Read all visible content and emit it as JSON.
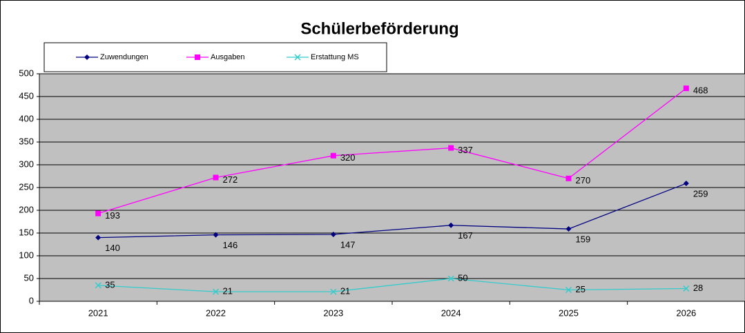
{
  "chart_data": {
    "type": "line",
    "title": "Schülerbeförderung",
    "categories": [
      "2021",
      "2022",
      "2023",
      "2024",
      "2025",
      "2026"
    ],
    "series": [
      {
        "name": "Zuwendungen",
        "color": "#000080",
        "marker": "diamond",
        "values": [
          140,
          146,
          147,
          167,
          159,
          259
        ]
      },
      {
        "name": "Ausgaben",
        "color": "#ff00ff",
        "marker": "square",
        "values": [
          193,
          272,
          320,
          337,
          270,
          468
        ]
      },
      {
        "name": "Erstattung MS",
        "color": "#33cccc",
        "marker": "x",
        "values": [
          35,
          21,
          21,
          50,
          25,
          28
        ]
      }
    ],
    "ylim": [
      0,
      500
    ],
    "yticks": [
      0,
      50,
      100,
      150,
      200,
      250,
      300,
      350,
      400,
      450,
      500
    ],
    "grid": true,
    "legend": "top"
  }
}
